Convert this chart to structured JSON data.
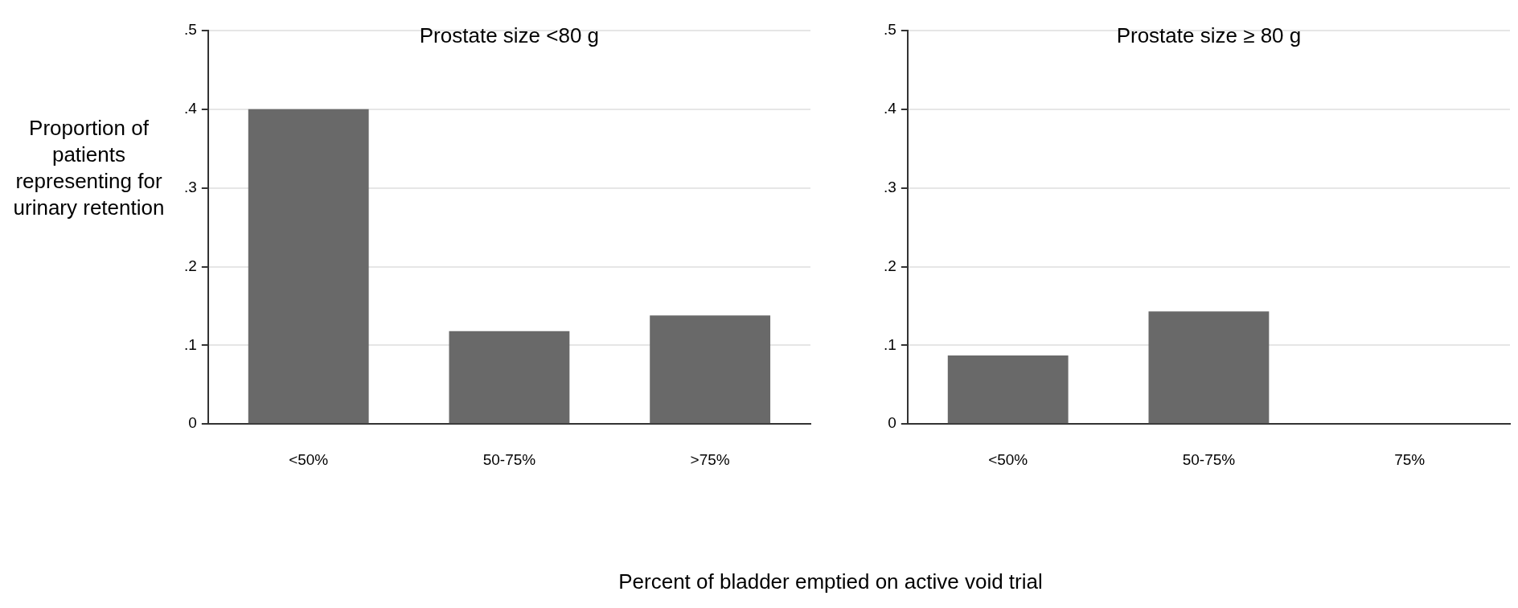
{
  "chart_data": [
    {
      "type": "bar",
      "title": "Prostate size <80 g",
      "ylabel": "Proportion of patients representing for urinary retention",
      "xlabel": "Percent of bladder emptied on active void trial",
      "categories": [
        "<50%",
        "50-75%",
        ">75%"
      ],
      "values": [
        0.4,
        0.118,
        0.138
      ],
      "color": "#696969",
      "ylim": [
        0,
        0.5
      ],
      "yticks": [
        0,
        {
          "value": 0.1,
          "label": ".1"
        },
        {
          "value": 0.2,
          "label": ".2"
        },
        {
          "value": 0.3,
          "label": ".3"
        },
        {
          "value": 0.4,
          "label": ".4"
        },
        {
          "value": 0.5,
          "label": ".5"
        }
      ],
      "grid": "y",
      "legend": false
    },
    {
      "type": "bar",
      "title": "Prostate size ≥ 80 g",
      "categories": [
        "<50%",
        "50-75%",
        "75%"
      ],
      "values": [
        0.087,
        0.143,
        0
      ],
      "color": "#696969",
      "ylim": [
        0,
        0.5
      ],
      "yticks": [
        0,
        {
          "value": 0.1,
          "label": ".1"
        },
        {
          "value": 0.2,
          "label": ".2"
        },
        {
          "value": 0.3,
          "label": ".3"
        },
        {
          "value": 0.4,
          "label": ".4"
        },
        {
          "value": 0.5,
          "label": ".5"
        }
      ],
      "grid": "y",
      "legend": false
    }
  ]
}
